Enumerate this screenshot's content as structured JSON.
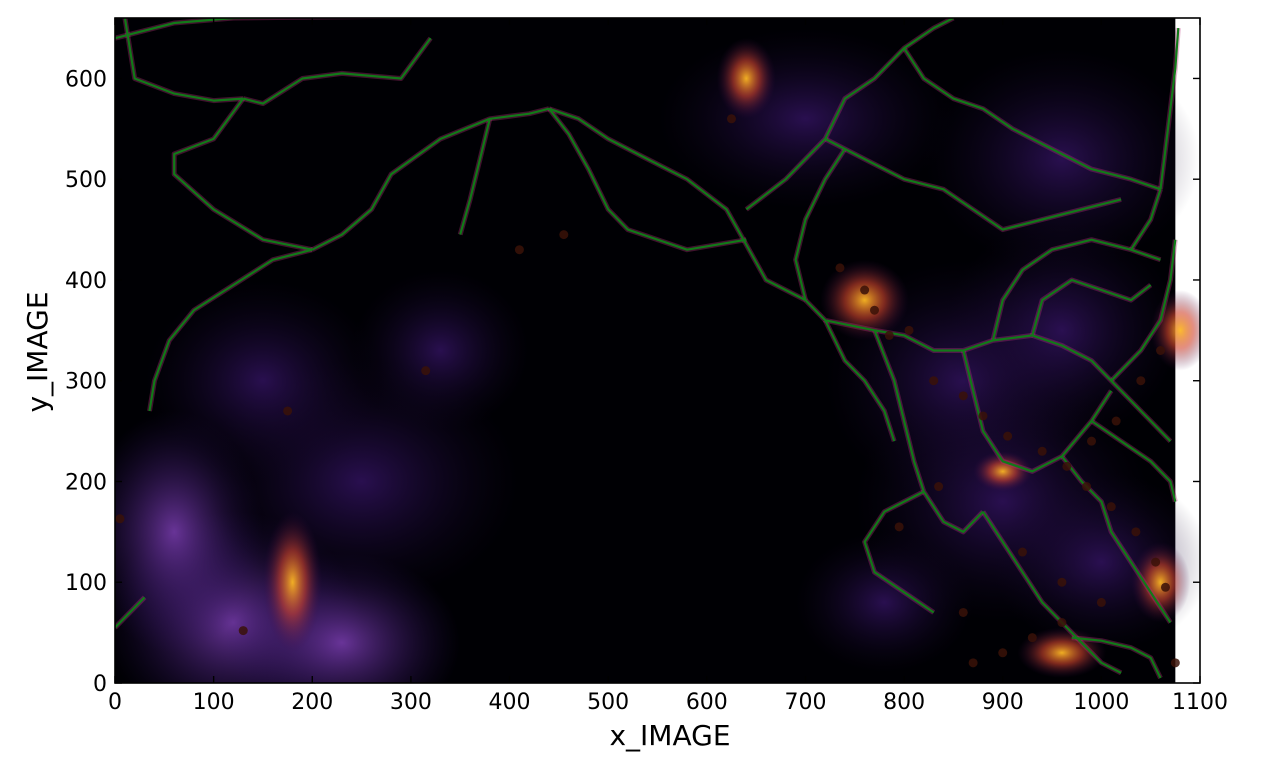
{
  "chart_data": {
    "type": "heatmap",
    "title": "",
    "xlabel": "x_IMAGE",
    "ylabel": "y_IMAGE",
    "xlim": [
      0,
      1100
    ],
    "ylim": [
      0,
      660
    ],
    "x_ticks": [
      "0",
      "100",
      "200",
      "300",
      "400",
      "500",
      "600",
      "700",
      "800",
      "900",
      "1000",
      "1100"
    ],
    "y_ticks": [
      "0",
      "100",
      "200",
      "300",
      "400",
      "500",
      "600"
    ],
    "colormap": "inferno",
    "image_extent": {
      "x": [
        0,
        1075
      ],
      "y": [
        0,
        660
      ]
    },
    "colors": {
      "network": "#117a18",
      "background": "#000004",
      "low": "#2a0f5c",
      "mid": "#b8307a",
      "high": "#fcb824",
      "points": "#3a1208"
    },
    "network_segments": [
      [
        [
          0,
          640
        ],
        [
          60,
          655
        ],
        [
          120,
          660
        ],
        [
          300,
          662
        ],
        [
          1070,
          662
        ]
      ],
      [
        [
          10,
          660
        ],
        [
          20,
          600
        ],
        [
          60,
          585
        ],
        [
          100,
          578
        ],
        [
          130,
          580
        ]
      ],
      [
        [
          130,
          580
        ],
        [
          150,
          575
        ],
        [
          190,
          600
        ],
        [
          230,
          605
        ],
        [
          290,
          600
        ],
        [
          320,
          640
        ]
      ],
      [
        [
          130,
          580
        ],
        [
          100,
          540
        ],
        [
          60,
          525
        ],
        [
          60,
          505
        ],
        [
          100,
          470
        ],
        [
          150,
          440
        ],
        [
          175,
          435
        ],
        [
          200,
          430
        ]
      ],
      [
        [
          200,
          430
        ],
        [
          230,
          445
        ],
        [
          260,
          470
        ],
        [
          280,
          505
        ],
        [
          330,
          540
        ],
        [
          380,
          560
        ],
        [
          420,
          565
        ],
        [
          440,
          570
        ]
      ],
      [
        [
          200,
          430
        ],
        [
          160,
          420
        ],
        [
          120,
          395
        ],
        [
          80,
          370
        ],
        [
          55,
          340
        ],
        [
          40,
          300
        ],
        [
          35,
          270
        ]
      ],
      [
        [
          440,
          570
        ],
        [
          470,
          560
        ],
        [
          500,
          540
        ],
        [
          540,
          520
        ],
        [
          580,
          500
        ],
        [
          620,
          470
        ],
        [
          640,
          435
        ],
        [
          660,
          400
        ],
        [
          700,
          380
        ]
      ],
      [
        [
          380,
          560
        ],
        [
          370,
          520
        ],
        [
          360,
          480
        ],
        [
          350,
          445
        ]
      ],
      [
        [
          440,
          570
        ],
        [
          460,
          545
        ],
        [
          480,
          510
        ],
        [
          500,
          470
        ],
        [
          520,
          450
        ],
        [
          580,
          430
        ],
        [
          640,
          440
        ]
      ],
      [
        [
          700,
          380
        ],
        [
          720,
          360
        ],
        [
          770,
          350
        ],
        [
          800,
          345
        ],
        [
          830,
          330
        ],
        [
          860,
          330
        ],
        [
          890,
          340
        ],
        [
          930,
          345
        ]
      ],
      [
        [
          930,
          345
        ],
        [
          960,
          335
        ],
        [
          990,
          320
        ],
        [
          1010,
          300
        ],
        [
          1030,
          280
        ],
        [
          1050,
          260
        ],
        [
          1070,
          240
        ]
      ],
      [
        [
          640,
          470
        ],
        [
          680,
          500
        ],
        [
          720,
          540
        ],
        [
          740,
          580
        ],
        [
          770,
          600
        ],
        [
          800,
          630
        ],
        [
          830,
          650
        ],
        [
          850,
          660
        ]
      ],
      [
        [
          700,
          380
        ],
        [
          690,
          420
        ],
        [
          700,
          460
        ],
        [
          720,
          500
        ],
        [
          740,
          530
        ]
      ],
      [
        [
          770,
          350
        ],
        [
          790,
          300
        ],
        [
          800,
          260
        ],
        [
          810,
          220
        ],
        [
          820,
          190
        ],
        [
          840,
          160
        ],
        [
          860,
          150
        ],
        [
          880,
          170
        ]
      ],
      [
        [
          860,
          330
        ],
        [
          870,
          290
        ],
        [
          880,
          250
        ],
        [
          900,
          220
        ],
        [
          930,
          210
        ],
        [
          960,
          225
        ],
        [
          990,
          260
        ],
        [
          1010,
          290
        ]
      ],
      [
        [
          890,
          340
        ],
        [
          900,
          380
        ],
        [
          920,
          410
        ],
        [
          950,
          430
        ],
        [
          990,
          440
        ],
        [
          1030,
          430
        ],
        [
          1060,
          420
        ]
      ],
      [
        [
          930,
          345
        ],
        [
          940,
          380
        ],
        [
          970,
          400
        ],
        [
          1000,
          390
        ],
        [
          1030,
          380
        ],
        [
          1050,
          395
        ]
      ],
      [
        [
          820,
          190
        ],
        [
          780,
          170
        ],
        [
          760,
          140
        ],
        [
          770,
          110
        ],
        [
          800,
          90
        ],
        [
          830,
          70
        ]
      ],
      [
        [
          880,
          170
        ],
        [
          900,
          140
        ],
        [
          920,
          110
        ],
        [
          940,
          80
        ],
        [
          960,
          60
        ],
        [
          980,
          40
        ],
        [
          1000,
          20
        ],
        [
          1020,
          10
        ]
      ],
      [
        [
          990,
          260
        ],
        [
          1020,
          240
        ],
        [
          1050,
          220
        ],
        [
          1070,
          200
        ],
        [
          1075,
          180
        ]
      ],
      [
        [
          960,
          225
        ],
        [
          980,
          200
        ],
        [
          1000,
          180
        ],
        [
          1010,
          150
        ],
        [
          1030,
          120
        ],
        [
          1050,
          90
        ],
        [
          1070,
          60
        ]
      ],
      [
        [
          720,
          360
        ],
        [
          740,
          320
        ],
        [
          760,
          300
        ],
        [
          780,
          270
        ],
        [
          790,
          240
        ]
      ],
      [
        [
          1010,
          300
        ],
        [
          1040,
          330
        ],
        [
          1060,
          360
        ],
        [
          1070,
          400
        ],
        [
          1075,
          440
        ]
      ],
      [
        [
          800,
          630
        ],
        [
          820,
          600
        ],
        [
          850,
          580
        ],
        [
          880,
          570
        ],
        [
          910,
          550
        ],
        [
          950,
          530
        ],
        [
          990,
          510
        ],
        [
          1030,
          500
        ],
        [
          1060,
          490
        ]
      ],
      [
        [
          720,
          540
        ],
        [
          760,
          520
        ],
        [
          800,
          500
        ],
        [
          840,
          490
        ],
        [
          870,
          470
        ],
        [
          900,
          450
        ],
        [
          940,
          460
        ],
        [
          980,
          470
        ],
        [
          1020,
          480
        ]
      ],
      [
        [
          1060,
          490
        ],
        [
          1065,
          530
        ],
        [
          1070,
          570
        ],
        [
          1075,
          610
        ],
        [
          1078,
          650
        ]
      ],
      [
        [
          1030,
          430
        ],
        [
          1050,
          460
        ],
        [
          1060,
          490
        ]
      ],
      [
        [
          0,
          55
        ],
        [
          15,
          70
        ],
        [
          30,
          85
        ]
      ],
      [
        [
          970,
          45
        ],
        [
          1000,
          42
        ],
        [
          1030,
          35
        ],
        [
          1050,
          25
        ],
        [
          1060,
          5
        ]
      ]
    ],
    "points": [
      [
        5,
        163
      ],
      [
        130,
        52
      ],
      [
        175,
        270
      ],
      [
        315,
        310
      ],
      [
        410,
        430
      ],
      [
        455,
        445
      ],
      [
        625,
        560
      ],
      [
        735,
        412
      ],
      [
        760,
        390
      ],
      [
        770,
        370
      ],
      [
        785,
        345
      ],
      [
        805,
        350
      ],
      [
        830,
        300
      ],
      [
        860,
        285
      ],
      [
        880,
        265
      ],
      [
        905,
        245
      ],
      [
        940,
        230
      ],
      [
        965,
        215
      ],
      [
        985,
        195
      ],
      [
        1010,
        175
      ],
      [
        1035,
        150
      ],
      [
        1055,
        120
      ],
      [
        1065,
        95
      ],
      [
        1000,
        80
      ],
      [
        960,
        60
      ],
      [
        930,
        45
      ],
      [
        900,
        30
      ],
      [
        870,
        20
      ],
      [
        1040,
        300
      ],
      [
        1060,
        330
      ],
      [
        1015,
        260
      ],
      [
        990,
        240
      ],
      [
        835,
        195
      ],
      [
        795,
        155
      ],
      [
        920,
        130
      ],
      [
        960,
        100
      ],
      [
        1075,
        20
      ],
      [
        860,
        70
      ]
    ]
  }
}
